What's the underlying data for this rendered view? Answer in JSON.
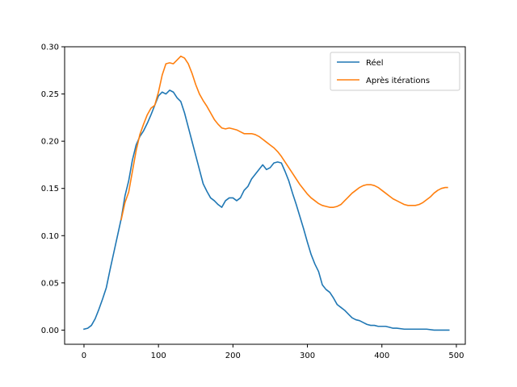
{
  "chart_data": {
    "type": "line",
    "title": "",
    "xlabel": "",
    "ylabel": "",
    "xlim": [
      -26,
      512
    ],
    "ylim": [
      -0.015,
      0.3
    ],
    "grid": false,
    "legend_position": "top-right",
    "x_ticks": [
      {
        "value": 0,
        "label": "0"
      },
      {
        "value": 100,
        "label": "100"
      },
      {
        "value": 200,
        "label": "200"
      },
      {
        "value": 300,
        "label": "300"
      },
      {
        "value": 400,
        "label": "400"
      },
      {
        "value": 500,
        "label": "500"
      }
    ],
    "y_ticks": [
      {
        "value": 0.0,
        "label": "0.00"
      },
      {
        "value": 0.05,
        "label": "0.05"
      },
      {
        "value": 0.1,
        "label": "0.10"
      },
      {
        "value": 0.15,
        "label": "0.15"
      },
      {
        "value": 0.2,
        "label": "0.20"
      },
      {
        "value": 0.25,
        "label": "0.25"
      },
      {
        "value": 0.3,
        "label": "0.30"
      }
    ],
    "series": [
      {
        "name": "Réel",
        "color": "#1f77b4",
        "points": [
          [
            0,
            0.001
          ],
          [
            5,
            0.002
          ],
          [
            10,
            0.005
          ],
          [
            15,
            0.012
          ],
          [
            20,
            0.022
          ],
          [
            25,
            0.033
          ],
          [
            30,
            0.045
          ],
          [
            35,
            0.064
          ],
          [
            40,
            0.082
          ],
          [
            45,
            0.1
          ],
          [
            50,
            0.118
          ],
          [
            55,
            0.142
          ],
          [
            60,
            0.158
          ],
          [
            65,
            0.18
          ],
          [
            70,
            0.196
          ],
          [
            75,
            0.205
          ],
          [
            80,
            0.211
          ],
          [
            85,
            0.219
          ],
          [
            90,
            0.228
          ],
          [
            95,
            0.238
          ],
          [
            100,
            0.248
          ],
          [
            105,
            0.252
          ],
          [
            110,
            0.25
          ],
          [
            115,
            0.254
          ],
          [
            120,
            0.252
          ],
          [
            125,
            0.246
          ],
          [
            130,
            0.242
          ],
          [
            135,
            0.23
          ],
          [
            140,
            0.215
          ],
          [
            145,
            0.2
          ],
          [
            150,
            0.185
          ],
          [
            155,
            0.17
          ],
          [
            160,
            0.155
          ],
          [
            165,
            0.147
          ],
          [
            170,
            0.14
          ],
          [
            175,
            0.137
          ],
          [
            180,
            0.133
          ],
          [
            185,
            0.13
          ],
          [
            190,
            0.137
          ],
          [
            195,
            0.14
          ],
          [
            200,
            0.14
          ],
          [
            205,
            0.137
          ],
          [
            210,
            0.14
          ],
          [
            215,
            0.148
          ],
          [
            220,
            0.152
          ],
          [
            225,
            0.16
          ],
          [
            230,
            0.165
          ],
          [
            235,
            0.17
          ],
          [
            240,
            0.175
          ],
          [
            245,
            0.17
          ],
          [
            250,
            0.172
          ],
          [
            255,
            0.177
          ],
          [
            260,
            0.178
          ],
          [
            265,
            0.177
          ],
          [
            270,
            0.168
          ],
          [
            275,
            0.158
          ],
          [
            280,
            0.145
          ],
          [
            285,
            0.133
          ],
          [
            290,
            0.12
          ],
          [
            295,
            0.107
          ],
          [
            300,
            0.093
          ],
          [
            305,
            0.08
          ],
          [
            310,
            0.07
          ],
          [
            315,
            0.062
          ],
          [
            320,
            0.048
          ],
          [
            325,
            0.043
          ],
          [
            330,
            0.04
          ],
          [
            335,
            0.034
          ],
          [
            340,
            0.027
          ],
          [
            345,
            0.024
          ],
          [
            350,
            0.021
          ],
          [
            355,
            0.017
          ],
          [
            360,
            0.013
          ],
          [
            365,
            0.011
          ],
          [
            370,
            0.01
          ],
          [
            375,
            0.008
          ],
          [
            380,
            0.006
          ],
          [
            385,
            0.005
          ],
          [
            390,
            0.005
          ],
          [
            395,
            0.004
          ],
          [
            400,
            0.004
          ],
          [
            405,
            0.004
          ],
          [
            410,
            0.003
          ],
          [
            415,
            0.002
          ],
          [
            420,
            0.002
          ],
          [
            430,
            0.001
          ],
          [
            440,
            0.001
          ],
          [
            450,
            0.001
          ],
          [
            460,
            0.001
          ],
          [
            470,
            0.0
          ],
          [
            480,
            0.0
          ],
          [
            490,
            0.0
          ]
        ]
      },
      {
        "name": "Après itérations",
        "color": "#ff7f0e",
        "points": [
          [
            50,
            0.117
          ],
          [
            55,
            0.135
          ],
          [
            60,
            0.146
          ],
          [
            65,
            0.168
          ],
          [
            70,
            0.19
          ],
          [
            75,
            0.207
          ],
          [
            80,
            0.218
          ],
          [
            85,
            0.228
          ],
          [
            90,
            0.235
          ],
          [
            95,
            0.238
          ],
          [
            100,
            0.252
          ],
          [
            105,
            0.27
          ],
          [
            110,
            0.282
          ],
          [
            115,
            0.283
          ],
          [
            120,
            0.282
          ],
          [
            125,
            0.286
          ],
          [
            130,
            0.29
          ],
          [
            135,
            0.288
          ],
          [
            140,
            0.282
          ],
          [
            145,
            0.272
          ],
          [
            150,
            0.26
          ],
          [
            155,
            0.25
          ],
          [
            160,
            0.243
          ],
          [
            165,
            0.237
          ],
          [
            170,
            0.23
          ],
          [
            175,
            0.223
          ],
          [
            180,
            0.218
          ],
          [
            185,
            0.214
          ],
          [
            190,
            0.213
          ],
          [
            195,
            0.214
          ],
          [
            200,
            0.213
          ],
          [
            205,
            0.212
          ],
          [
            210,
            0.21
          ],
          [
            215,
            0.208
          ],
          [
            220,
            0.208
          ],
          [
            225,
            0.208
          ],
          [
            230,
            0.207
          ],
          [
            235,
            0.205
          ],
          [
            240,
            0.202
          ],
          [
            245,
            0.199
          ],
          [
            250,
            0.196
          ],
          [
            255,
            0.193
          ],
          [
            260,
            0.189
          ],
          [
            265,
            0.184
          ],
          [
            270,
            0.178
          ],
          [
            275,
            0.172
          ],
          [
            280,
            0.166
          ],
          [
            285,
            0.16
          ],
          [
            290,
            0.154
          ],
          [
            295,
            0.149
          ],
          [
            300,
            0.144
          ],
          [
            305,
            0.14
          ],
          [
            310,
            0.137
          ],
          [
            315,
            0.134
          ],
          [
            320,
            0.132
          ],
          [
            325,
            0.131
          ],
          [
            330,
            0.13
          ],
          [
            335,
            0.13
          ],
          [
            340,
            0.131
          ],
          [
            345,
            0.133
          ],
          [
            350,
            0.137
          ],
          [
            355,
            0.141
          ],
          [
            360,
            0.145
          ],
          [
            365,
            0.148
          ],
          [
            370,
            0.151
          ],
          [
            375,
            0.153
          ],
          [
            380,
            0.154
          ],
          [
            385,
            0.154
          ],
          [
            390,
            0.153
          ],
          [
            395,
            0.151
          ],
          [
            400,
            0.148
          ],
          [
            405,
            0.145
          ],
          [
            410,
            0.142
          ],
          [
            415,
            0.139
          ],
          [
            420,
            0.137
          ],
          [
            425,
            0.135
          ],
          [
            430,
            0.133
          ],
          [
            435,
            0.132
          ],
          [
            440,
            0.132
          ],
          [
            445,
            0.132
          ],
          [
            450,
            0.133
          ],
          [
            455,
            0.135
          ],
          [
            460,
            0.138
          ],
          [
            465,
            0.141
          ],
          [
            470,
            0.145
          ],
          [
            475,
            0.148
          ],
          [
            480,
            0.15
          ],
          [
            485,
            0.151
          ],
          [
            488,
            0.151
          ]
        ]
      }
    ]
  }
}
